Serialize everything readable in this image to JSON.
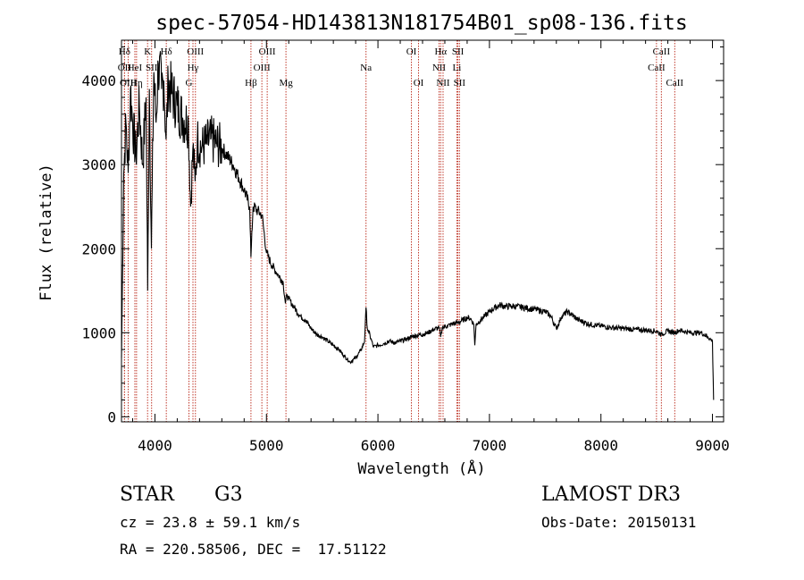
{
  "chart_data": {
    "type": "line",
    "title": "spec-57054-HD143813N181754B01_sp08-136.fits",
    "xlabel": "Wavelength (Å)",
    "ylabel": "Flux (relative)",
    "xlim": [
      3700,
      9100
    ],
    "ylim": [
      -60,
      4480
    ],
    "x_ticks": [
      4000,
      5000,
      6000,
      7000,
      8000,
      9000
    ],
    "x_tick_labels": [
      "4000",
      "5000",
      "6000",
      "7000",
      "8000",
      "9000"
    ],
    "y_ticks": [
      0,
      1000,
      2000,
      3000,
      4000
    ],
    "y_tick_labels": [
      "0",
      "1000",
      "2000",
      "3000",
      "4000"
    ],
    "series": [
      {
        "name": "flux",
        "x": [
          3700,
          3720,
          3740,
          3760,
          3780,
          3800,
          3830,
          3860,
          3890,
          3920,
          3935,
          3950,
          3968,
          3990,
          4010,
          4030,
          4060,
          4080,
          4100,
          4120,
          4150,
          4200,
          4250,
          4300,
          4320,
          4340,
          4360,
          4380,
          4420,
          4460,
          4500,
          4550,
          4600,
          4650,
          4700,
          4750,
          4800,
          4850,
          4861,
          4880,
          4920,
          4960,
          5000,
          5050,
          5100,
          5150,
          5170,
          5185,
          5200,
          5250,
          5300,
          5350,
          5400,
          5450,
          5500,
          5550,
          5600,
          5650,
          5700,
          5750,
          5800,
          5850,
          5880,
          5893,
          5905,
          5920,
          5960,
          6000,
          6050,
          6100,
          6150,
          6200,
          6250,
          6300,
          6350,
          6400,
          6450,
          6500,
          6550,
          6563,
          6580,
          6620,
          6680,
          6720,
          6760,
          6800,
          6830,
          6860,
          6869,
          6880,
          6920,
          6960,
          7000,
          7050,
          7100,
          7150,
          7200,
          7300,
          7400,
          7500,
          7550,
          7600,
          7650,
          7700,
          7800,
          7900,
          8000,
          8100,
          8200,
          8300,
          8400,
          8498,
          8542,
          8600,
          8662,
          8700,
          8800,
          8900,
          8960,
          9000,
          9010
        ],
        "values": [
          700,
          2900,
          3500,
          2900,
          3900,
          3500,
          3100,
          3700,
          3000,
          3800,
          1500,
          3900,
          2000,
          4100,
          3500,
          4200,
          3900,
          4000,
          3300,
          4000,
          3850,
          3700,
          3550,
          3500,
          2500,
          3200,
          2800,
          3300,
          3200,
          3250,
          3300,
          3250,
          3200,
          3100,
          3000,
          2850,
          2700,
          2500,
          1900,
          2500,
          2450,
          2400,
          1950,
          1800,
          1700,
          1600,
          1350,
          1450,
          1400,
          1300,
          1200,
          1150,
          1050,
          980,
          950,
          900,
          850,
          800,
          720,
          650,
          700,
          800,
          900,
          1300,
          1050,
          1000,
          830,
          850,
          870,
          900,
          880,
          900,
          920,
          950,
          970,
          980,
          1000,
          1040,
          1060,
          950,
          1070,
          1080,
          1110,
          1120,
          1150,
          1180,
          1170,
          1100,
          850,
          1100,
          1150,
          1200,
          1250,
          1300,
          1330,
          1310,
          1320,
          1300,
          1280,
          1250,
          1200,
          1050,
          1200,
          1250,
          1150,
          1100,
          1080,
          1060,
          1050,
          1040,
          1030,
          1020,
          980,
          1020,
          1000,
          1030,
          1000,
          1000,
          950,
          900,
          200
        ]
      }
    ],
    "spectral_lines": [
      {
        "label": "Hδ",
        "wavelength": 3727,
        "row": 1
      },
      {
        "label": "OII",
        "wavelength": 3727,
        "row": 2
      },
      {
        "label": "OIII",
        "wavelength": 3760,
        "row": 3
      },
      {
        "label": "HeI",
        "wavelength": 3820,
        "row": 2
      },
      {
        "label": "Hη",
        "wavelength": 3835,
        "row": 3
      },
      {
        "label": "K",
        "wavelength": 3934,
        "row": 1
      },
      {
        "label": "SII",
        "wavelength": 3970,
        "row": 2
      },
      {
        "label": "Hδ",
        "wavelength": 4102,
        "row": 1
      },
      {
        "label": "OIII",
        "wavelength": 4363,
        "row": 1
      },
      {
        "label": "Hγ",
        "wavelength": 4341,
        "row": 2
      },
      {
        "label": "G",
        "wavelength": 4305,
        "row": 3
      },
      {
        "label": "Hβ",
        "wavelength": 4861,
        "row": 3
      },
      {
        "label": "OIII",
        "wavelength": 5007,
        "row": 1
      },
      {
        "label": "OIII",
        "wavelength": 4959,
        "row": 2
      },
      {
        "label": "Mg",
        "wavelength": 5175,
        "row": 3
      },
      {
        "label": "Na",
        "wavelength": 5893,
        "row": 2
      },
      {
        "label": "OI",
        "wavelength": 6300,
        "row": 1
      },
      {
        "label": "OI",
        "wavelength": 6364,
        "row": 3
      },
      {
        "label": "Hα",
        "wavelength": 6563,
        "row": 1
      },
      {
        "label": "NII",
        "wavelength": 6548,
        "row": 2
      },
      {
        "label": "NII",
        "wavelength": 6584,
        "row": 3
      },
      {
        "label": "SII",
        "wavelength": 6717,
        "row": 1
      },
      {
        "label": "Li",
        "wavelength": 6708,
        "row": 2
      },
      {
        "label": "SII",
        "wavelength": 6731,
        "row": 3
      },
      {
        "label": "CaII",
        "wavelength": 8542,
        "row": 1
      },
      {
        "label": "CaII",
        "wavelength": 8498,
        "row": 2
      },
      {
        "label": "CaII",
        "wavelength": 8662,
        "row": 3
      }
    ]
  },
  "info": {
    "class_type": "STAR",
    "subclass": "G3",
    "survey": "LAMOST DR3",
    "redshift_text": "cz = 23.8 ± 59.1 km/s",
    "obs_date": "Obs-Date: 20150131",
    "coordinates": "RA = 220.58506, DEC =  17.51122"
  },
  "colors": {
    "line": "#000000",
    "marker_line": "#c0392b"
  }
}
